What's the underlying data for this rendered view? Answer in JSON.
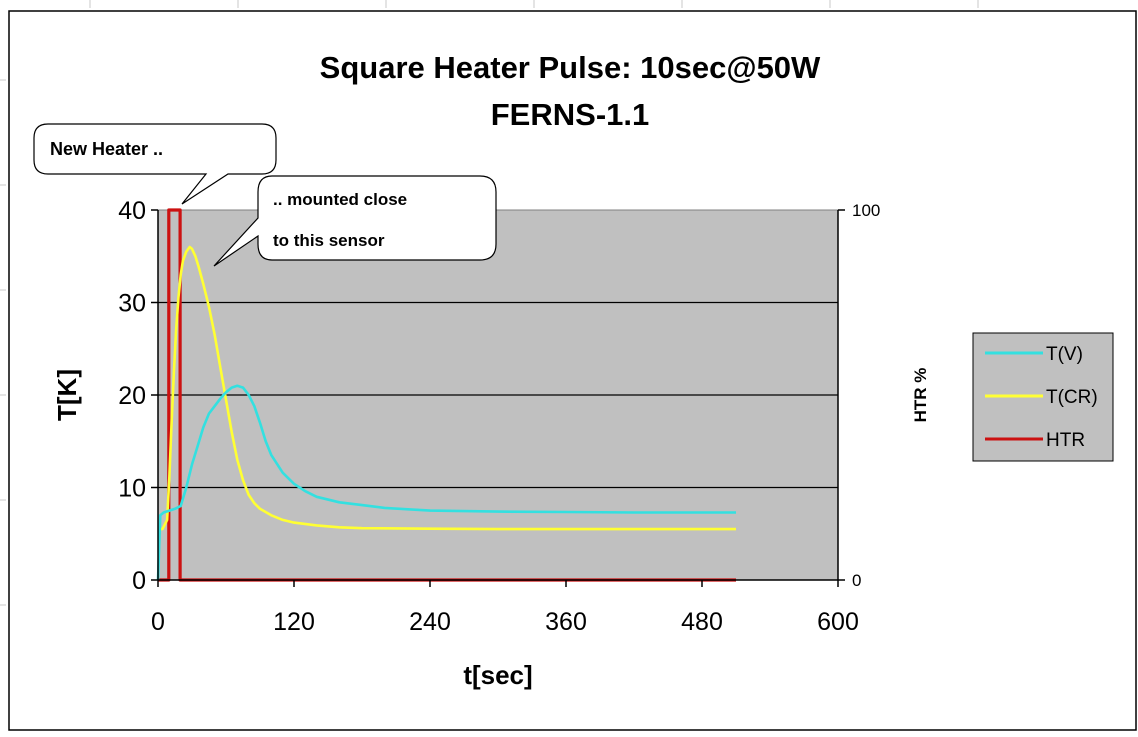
{
  "chart_data": {
    "type": "line",
    "title": "Square Heater Pulse: 10sec@50W",
    "subtitle": "FERNS-1.1",
    "xlabel": "t[sec]",
    "ylabel": "T[K]",
    "y2label": "HTR %",
    "xlim": [
      0,
      600
    ],
    "ylim": [
      0,
      40
    ],
    "y2lim": [
      0,
      100
    ],
    "xticks": [
      "0",
      "120",
      "240",
      "360",
      "480",
      "600"
    ],
    "yticks": [
      "0",
      "10",
      "20",
      "30",
      "40"
    ],
    "y2ticks": [
      "0",
      "100"
    ],
    "grid": "horizontal",
    "plot_background": "#c0c0c0",
    "legend_position": "right",
    "annotations": [
      {
        "text": "New Heater ..",
        "target_x": 18,
        "target_y": 40
      },
      {
        "text_lines": [
          ".. mounted close",
          "to this sensor"
        ],
        "target_x": 55,
        "target_y": 34
      }
    ],
    "series": [
      {
        "name": "T(V)",
        "color": "#33e0e0",
        "axis": "left",
        "x": [
          0,
          2,
          5,
          10,
          15,
          20,
          25,
          30,
          35,
          40,
          45,
          50,
          55,
          60,
          65,
          70,
          75,
          80,
          85,
          90,
          95,
          100,
          110,
          120,
          130,
          140,
          160,
          180,
          200,
          240,
          300,
          360,
          420,
          480,
          510
        ],
        "y": [
          0,
          7.0,
          7.3,
          7.5,
          7.7,
          8.0,
          10.0,
          12.5,
          14.5,
          16.5,
          18.0,
          18.8,
          19.6,
          20.3,
          20.8,
          21.0,
          20.8,
          20.0,
          18.8,
          17.0,
          15.0,
          13.5,
          11.6,
          10.4,
          9.6,
          9.0,
          8.4,
          8.1,
          7.8,
          7.5,
          7.4,
          7.35,
          7.3,
          7.3,
          7.3
        ]
      },
      {
        "name": "T(CR)",
        "color": "#ffff33",
        "axis": "left",
        "x": [
          0,
          4,
          8,
          10,
          12,
          14,
          16,
          18,
          20,
          22,
          25,
          28,
          30,
          33,
          36,
          40,
          45,
          50,
          55,
          60,
          65,
          70,
          75,
          80,
          85,
          90,
          100,
          110,
          120,
          140,
          160,
          180,
          240,
          300,
          360,
          420,
          480,
          510
        ],
        "y": [
          5.5,
          5.5,
          6.5,
          11.0,
          17.0,
          22.5,
          27.0,
          30.5,
          33.0,
          34.5,
          35.5,
          36.0,
          35.8,
          35.0,
          33.8,
          32.0,
          29.5,
          26.5,
          23.0,
          19.5,
          16.0,
          13.0,
          10.8,
          9.2,
          8.3,
          7.7,
          7.0,
          6.5,
          6.2,
          5.9,
          5.7,
          5.6,
          5.55,
          5.5,
          5.5,
          5.5,
          5.5,
          5.5
        ]
      },
      {
        "name": "HTR",
        "color": "#cc1111",
        "axis": "right",
        "x": [
          0,
          9.5,
          9.5,
          19.5,
          19.5,
          510
        ],
        "y": [
          0,
          0,
          100,
          100,
          0,
          0
        ]
      }
    ]
  }
}
